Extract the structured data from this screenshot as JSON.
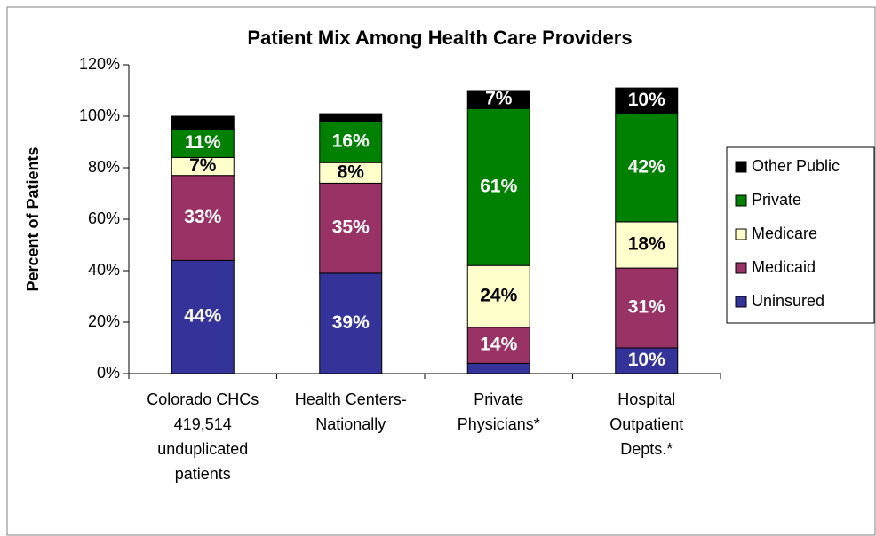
{
  "chart_data": {
    "type": "stacked_bar",
    "title": "Patient Mix Among Health Care Providers",
    "y_label": "Percent of Patients",
    "categories": [
      "Colorado CHCs\n419,514\nunduplicated\npatients",
      "Health Centers-\nNationally",
      "Private\nPhysicians*",
      "Hospital\nOutpatient\nDepts.*"
    ],
    "series": [
      {
        "name": "Uninsured",
        "color": "#333399",
        "label_color": "#ffffff",
        "values": [
          44,
          39,
          4,
          10
        ],
        "value_labels": [
          "44%",
          "39%",
          null,
          "10%"
        ]
      },
      {
        "name": "Medicaid",
        "color": "#993366",
        "label_color": "#ffffff",
        "values": [
          33,
          35,
          14,
          31
        ],
        "value_labels": [
          "33%",
          "35%",
          "14%",
          "31%"
        ]
      },
      {
        "name": "Medicare",
        "color": "#ffffcc",
        "label_color": "#000000",
        "values": [
          7,
          8,
          24,
          18
        ],
        "value_labels": [
          "7%",
          "8%",
          "24%",
          "18%"
        ]
      },
      {
        "name": "Private",
        "color": "#008000",
        "label_color": "#ffffff",
        "values": [
          11,
          16,
          61,
          42
        ],
        "value_labels": [
          "11%",
          "16%",
          "61%",
          "42%"
        ]
      },
      {
        "name": "Other Public",
        "color": "#000000",
        "label_color": "#ffffff",
        "values": [
          5,
          3,
          7,
          10
        ],
        "value_labels": [
          null,
          null,
          "7%",
          "10%"
        ]
      }
    ],
    "ylim": [
      0,
      120
    ],
    "yticks": [
      {
        "value": 0,
        "label": "0%"
      },
      {
        "value": 20,
        "label": "20%"
      },
      {
        "value": 40,
        "label": "40%"
      },
      {
        "value": 60,
        "label": "60%"
      },
      {
        "value": 80,
        "label": "80%"
      },
      {
        "value": 100,
        "label": "100%"
      },
      {
        "value": 120,
        "label": "120%"
      }
    ],
    "legend": "right"
  }
}
